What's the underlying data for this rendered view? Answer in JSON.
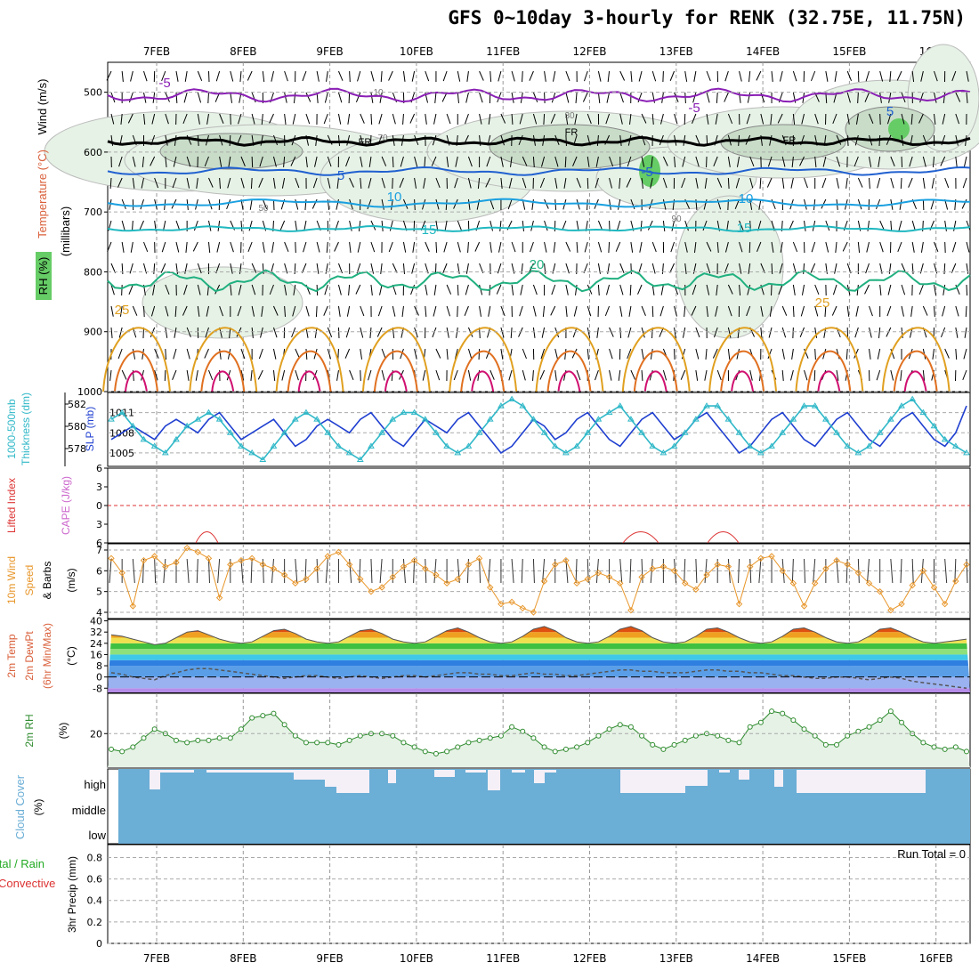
{
  "title": "GFS 0~10day 3-hourly for RENK (32.75E, 11.75N)",
  "dates": [
    "7FEB",
    "8FEB",
    "9FEB",
    "10FEB",
    "11FEB",
    "12FEB",
    "13FEB",
    "14FEB",
    "15FEB",
    "16FEB"
  ],
  "run_total": "Run Total = 0",
  "colors": {
    "wind_label": "#000000",
    "temperature": "#d95f3a",
    "rh": "#22aa22",
    "thickness": "#30b8c8",
    "slp": "#2040d0",
    "lifted": "#dd3333",
    "cape": "#cc66cc",
    "wind10": "#e8962a",
    "rh2m": "#2e8b2e",
    "cloud": "#6baed6",
    "precip_total": "#22aa22",
    "precip_conv": "#dd3333"
  },
  "chart_data": [
    {
      "type": "contour",
      "panel": "upper-air",
      "ylabels": [
        "Wind (m/s)",
        "Temperature (°C)",
        "RH (%)",
        "(millibars)"
      ],
      "yticks": [
        500,
        600,
        700,
        800,
        900,
        1000
      ],
      "ylim": [
        450,
        1000
      ],
      "temperature_contour_labels": [
        "-5",
        "-5",
        "5",
        "10",
        "10",
        "15",
        "15",
        "20",
        "25",
        "25",
        "-5",
        "5"
      ],
      "rh_contour_labels": [
        "10",
        "30",
        "50",
        "70",
        "90"
      ],
      "freezing_label": "FR"
    },
    {
      "type": "line",
      "panel": "thickness-slp",
      "ylabels": [
        "1000-500mb",
        "Thickness (dm)",
        "SLP (mb)"
      ],
      "left_ticks": [
        582,
        580,
        578
      ],
      "right_ticks": [
        1011,
        1008,
        1005
      ],
      "series": [
        {
          "name": "SLP (mb)",
          "values": [
            1007,
            1008,
            1009,
            1008,
            1007,
            1009,
            1010,
            1009,
            1008,
            1010,
            1011,
            1009,
            1007,
            1008,
            1009,
            1010,
            1008,
            1006,
            1007,
            1009,
            1010,
            1009,
            1008,
            1010,
            1011,
            1009,
            1007,
            1006,
            1008,
            1010,
            1009,
            1008,
            1010,
            1011,
            1009,
            1007,
            1005,
            1006,
            1008,
            1010,
            1009,
            1007,
            1008,
            1010,
            1011,
            1009,
            1007,
            1006,
            1008,
            1010,
            1011,
            1009,
            1007,
            1008,
            1010,
            1011,
            1009,
            1007,
            1005,
            1006,
            1008,
            1010,
            1011,
            1009,
            1007,
            1006,
            1008,
            1010,
            1011,
            1009,
            1007,
            1006,
            1008,
            1010,
            1011,
            1009,
            1007,
            1006,
            1008,
            1012
          ]
        },
        {
          "name": "1000-500mb Thickness (dm)",
          "values": [
            1010,
            1011,
            1009,
            1007,
            1006,
            1005,
            1007,
            1009,
            1010,
            1011,
            1010,
            1008,
            1006,
            1005,
            1004,
            1006,
            1008,
            1010,
            1011,
            1010,
            1008,
            1006,
            1005,
            1004,
            1006,
            1008,
            1010,
            1011,
            1011,
            1010,
            1008,
            1006,
            1005,
            1006,
            1008,
            1010,
            1012,
            1013,
            1012,
            1010,
            1008,
            1006,
            1005,
            1006,
            1008,
            1010,
            1011,
            1012,
            1010,
            1008,
            1006,
            1005,
            1006,
            1008,
            1010,
            1012,
            1012,
            1010,
            1008,
            1006,
            1005,
            1006,
            1008,
            1010,
            1012,
            1012,
            1010,
            1008,
            1006,
            1005,
            1006,
            1008,
            1010,
            1012,
            1013,
            1011,
            1009,
            1007,
            1006,
            1005
          ]
        }
      ]
    },
    {
      "type": "line",
      "panel": "stability",
      "ylabels": [
        "Lifted Index",
        "CAPE (J/kg)"
      ],
      "yticks": [
        -6,
        -3,
        0,
        3,
        6
      ],
      "ylim": [
        -6,
        6
      ]
    },
    {
      "type": "line",
      "panel": "wind10m",
      "ylabels": [
        "10m Wind",
        "Speed",
        "& Barbs",
        "(m/s)"
      ],
      "yticks": [
        4,
        5,
        6,
        7
      ],
      "ylim": [
        3.7,
        7.3
      ],
      "series": [
        {
          "name": "10m Wind Speed",
          "values": [
            6.6,
            5.9,
            4.3,
            6.5,
            6.7,
            6.2,
            6.4,
            7.1,
            6.9,
            6.6,
            4.7,
            6.3,
            6.5,
            6.6,
            6.3,
            6.1,
            5.8,
            5.4,
            5.6,
            6.1,
            6.7,
            6.9,
            6.3,
            5.6,
            5.0,
            5.2,
            5.7,
            6.2,
            6.5,
            6.1,
            5.8,
            5.4,
            5.6,
            6.3,
            6.6,
            5.2,
            4.4,
            4.5,
            4.2,
            4.0,
            5.5,
            6.3,
            6.5,
            5.4,
            5.6,
            5.9,
            5.7,
            5.4,
            4.1,
            5.7,
            6.1,
            6.2,
            6.0,
            5.4,
            5.1,
            5.8,
            6.3,
            6.2,
            4.4,
            6.2,
            6.6,
            6.7,
            6.0,
            5.4,
            4.3,
            5.4,
            6.1,
            6.5,
            6.3,
            5.9,
            5.4,
            5.0,
            4.1,
            4.4,
            5.3,
            6.0,
            5.2,
            4.4,
            5.5,
            6.3
          ]
        }
      ]
    },
    {
      "type": "area",
      "panel": "temp2m",
      "ylabels": [
        "2m Temp",
        "2m DewPt",
        "(6hr Min/Max)",
        "(°C)"
      ],
      "yticks": [
        -8,
        0,
        8,
        16,
        24,
        32,
        40
      ],
      "ylim": [
        -11,
        41
      ],
      "series": [
        {
          "name": "2m Temp",
          "values": [
            30,
            29,
            27,
            25,
            23,
            24,
            28,
            32,
            33,
            30,
            27,
            25,
            24,
            25,
            29,
            33,
            34,
            31,
            27,
            25,
            24,
            25,
            29,
            33,
            34,
            31,
            27,
            25,
            24,
            25,
            29,
            33,
            35,
            32,
            28,
            25,
            24,
            25,
            29,
            34,
            36,
            33,
            28,
            25,
            24,
            25,
            29,
            34,
            36,
            33,
            28,
            25,
            24,
            25,
            29,
            34,
            35,
            32,
            28,
            25,
            24,
            25,
            29,
            34,
            35,
            32,
            28,
            25,
            24,
            25,
            29,
            34,
            35,
            32,
            28,
            25,
            24,
            25,
            26,
            27
          ]
        },
        {
          "name": "2m DewPt",
          "values": [
            3,
            2,
            0,
            -1,
            -2,
            1,
            3,
            5,
            6,
            6,
            5,
            4,
            3,
            2,
            1,
            0,
            -1,
            0,
            1,
            1,
            0,
            -1,
            0,
            1,
            0,
            -1,
            0,
            1,
            1,
            0,
            1,
            2,
            3,
            3,
            2,
            2,
            1,
            1,
            2,
            3,
            2,
            2,
            1,
            1,
            2,
            3,
            4,
            5,
            5,
            4,
            4,
            3,
            3,
            3,
            4,
            5,
            5,
            4,
            4,
            3,
            3,
            2,
            1,
            1,
            0,
            -1,
            -1,
            0,
            0,
            -1,
            -2,
            -1,
            0,
            -1,
            -3,
            -4,
            -5,
            -6,
            -7,
            -8
          ]
        }
      ]
    },
    {
      "type": "area",
      "panel": "rh2m",
      "ylabels": [
        "2m RH",
        "(%)"
      ],
      "yticks": [
        20
      ],
      "ylim": [
        5,
        38
      ],
      "series": [
        {
          "name": "2m RH",
          "values": [
            13,
            12,
            14,
            18,
            22,
            20,
            17,
            16,
            17,
            17,
            18,
            18,
            22,
            27,
            28,
            29,
            24,
            19,
            16,
            16,
            16,
            15,
            17,
            19,
            20,
            20,
            19,
            16,
            14,
            12,
            11,
            12,
            14,
            16,
            17,
            18,
            19,
            23,
            21,
            18,
            14,
            12,
            13,
            14,
            16,
            19,
            22,
            24,
            23,
            19,
            15,
            13,
            15,
            17,
            19,
            20,
            19,
            17,
            16,
            23,
            25,
            30,
            29,
            26,
            22,
            19,
            15,
            15,
            19,
            21,
            23,
            26,
            30,
            25,
            20,
            16,
            14,
            13,
            14,
            12
          ]
        }
      ]
    },
    {
      "type": "bar",
      "panel": "cloud",
      "ylabels": [
        "Cloud Cover",
        "(%)"
      ],
      "yticks": [
        "high",
        "middle",
        "low"
      ]
    },
    {
      "type": "bar",
      "panel": "precip",
      "ylabels": [
        "Total / Rain",
        "Convective",
        "3hr Precip (mm)"
      ],
      "yticks": [
        0,
        0.2,
        0.4,
        0.6,
        0.8
      ],
      "ylim": [
        0,
        0.92
      ],
      "values": []
    }
  ]
}
